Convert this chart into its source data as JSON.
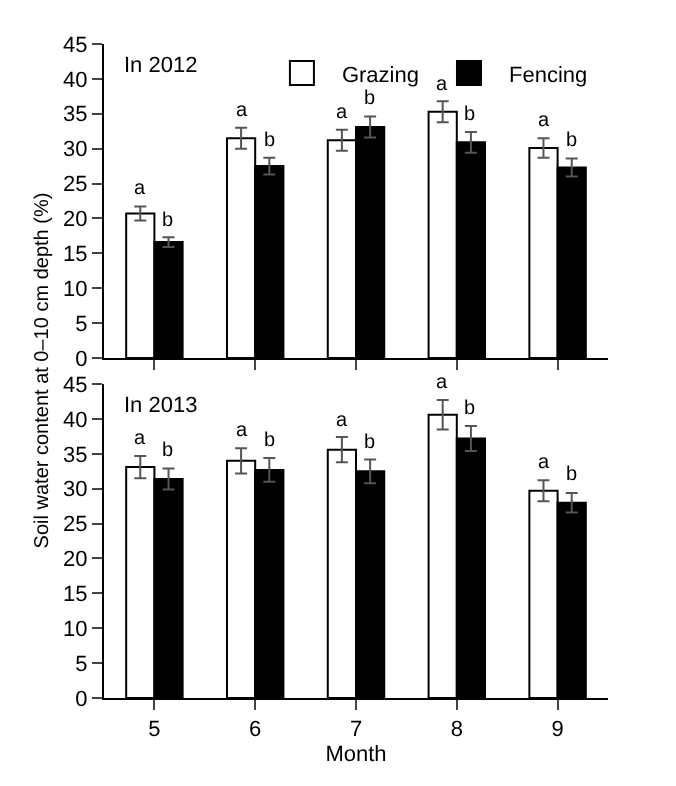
{
  "chart_data": [
    {
      "type": "bar",
      "title": "In 2012",
      "ylabel": "Soil water content at 0–10 cm depth (%)",
      "categories": [
        "5",
        "6",
        "7",
        "8",
        "9"
      ],
      "series": [
        {
          "name": "Grazing",
          "color": "#ffffff",
          "values": [
            20.7,
            31.5,
            31.2,
            35.3,
            30.1
          ],
          "errors": [
            1.0,
            1.5,
            1.5,
            1.5,
            1.4
          ],
          "value_labels": [
            "a",
            "a",
            "a",
            "a",
            "a"
          ]
        },
        {
          "name": "Fencing",
          "color": "#000000",
          "values": [
            16.6,
            27.5,
            33.1,
            30.9,
            27.3
          ],
          "errors": [
            0.7,
            1.2,
            1.5,
            1.5,
            1.3
          ],
          "value_labels": [
            "b",
            "b",
            "b",
            "b",
            "b"
          ]
        }
      ],
      "ylim": [
        0,
        45
      ],
      "yticks": [
        0,
        5,
        10,
        15,
        20,
        25,
        30,
        35,
        40,
        45
      ],
      "legend": "top",
      "tick_labels": "y"
    },
    {
      "type": "bar",
      "title": "In 2013",
      "xlabel": "Month",
      "categories": [
        "5",
        "6",
        "7",
        "8",
        "9"
      ],
      "series": [
        {
          "color": "#ffffff",
          "values": [
            33.1,
            34.0,
            35.6,
            40.6,
            29.7
          ],
          "errors": [
            1.6,
            1.8,
            1.8,
            2.1,
            1.5
          ],
          "value_labels": [
            "a",
            "a",
            "a",
            "a",
            "a"
          ]
        },
        {
          "color": "#000000",
          "values": [
            31.4,
            32.7,
            32.5,
            37.2,
            28.0
          ],
          "errors": [
            1.5,
            1.7,
            1.7,
            1.8,
            1.4
          ],
          "value_labels": [
            "b",
            "b",
            "b",
            "b",
            "b"
          ]
        }
      ],
      "ylim": [
        0,
        45
      ],
      "yticks": [
        0,
        5,
        10,
        15,
        20,
        25,
        30,
        35,
        40,
        45
      ],
      "legend": false
    }
  ]
}
